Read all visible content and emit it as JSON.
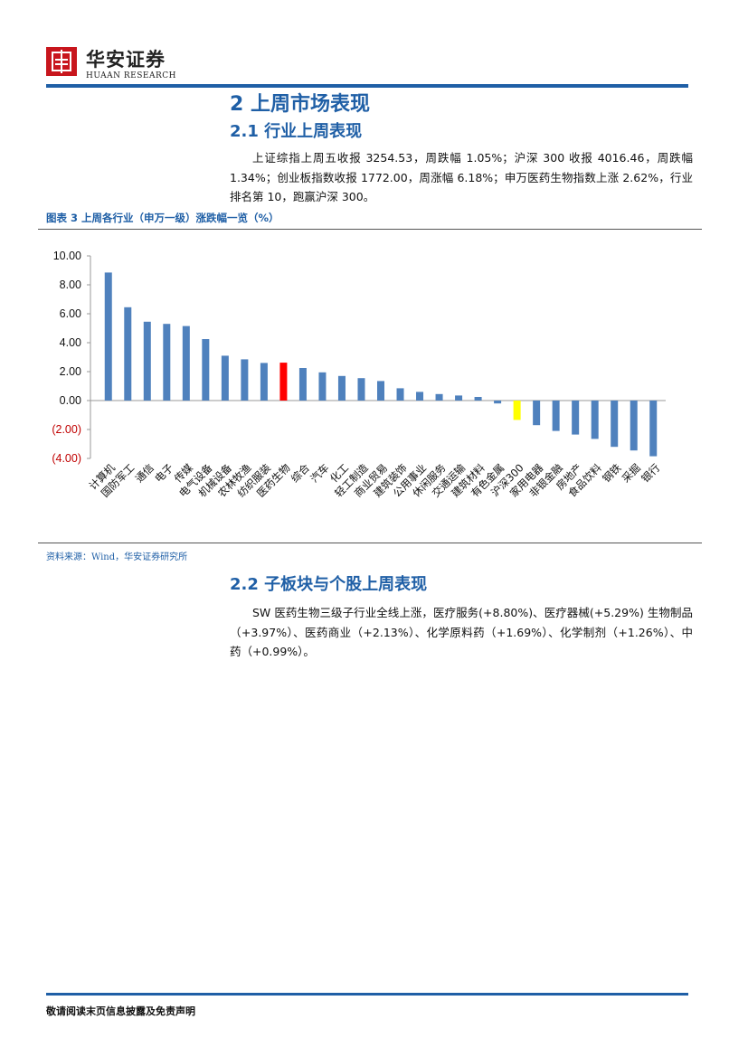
{
  "header": {
    "brand_cn": "华安证券",
    "brand_en": "HUAAN RESEARCH",
    "logo": "huaan-logo"
  },
  "section": {
    "heading": "2 上周市场表现",
    "sub1": "2.1 行业上周表现",
    "para1": "上证综指上周五收报 3254.53，周跌幅 1.05%；沪深 300 收报 4016.46，周跌幅 1.34%；创业板指数收报 1772.00，周涨幅 6.18%；申万医药生物指数上涨 2.62%，行业排名第 10，跑赢沪深 300。",
    "figure_title": "图表 3 上周各行业（申万一级）涨跌幅一览（%）",
    "source": "资料来源：Wind，华安证券研究所",
    "sub2": "2.2 子板块与个股上周表现",
    "para2": "SW 医药生物三级子行业全线上涨，医疗服务(+8.80%)、医疗器械(+5.29%) 生物制品（+3.97%）、医药商业（+2.13%）、化学原料药（+1.69%）、化学制剂（+1.26%）、中药（+0.99%）。"
  },
  "footer": {
    "disclaimer": "敬请阅读末页信息披露及免责声明"
  },
  "colors": {
    "brand_blue": "#1f5fa6",
    "bar_default": "#4f81bd",
    "bar_highlight": "#ff0000",
    "bar_index": "#ffff00",
    "negative_tick": "#c00000",
    "logo_red": "#c8161d"
  },
  "chart_data": {
    "type": "bar",
    "ylim": [
      -4,
      10
    ],
    "yticks": [
      "10.00",
      "8.00",
      "6.00",
      "4.00",
      "2.00",
      "0.00",
      "(2.00)",
      "(4.00)"
    ],
    "categories": [
      "计算机",
      "国防军工",
      "通信",
      "电子",
      "传媒",
      "电气设备",
      "机械设备",
      "农林牧渔",
      "纺织服装",
      "医药生物",
      "综合",
      "汽车",
      "化工",
      "轻工制造",
      "商业贸易",
      "建筑装饰",
      "公用事业",
      "休闲服务",
      "交通运输",
      "建筑材料",
      "有色金属",
      "沪深300",
      "家用电器",
      "非银金融",
      "房地产",
      "食品饮料",
      "钢铁",
      "采掘",
      "银行"
    ],
    "values": [
      8.85,
      6.45,
      5.45,
      5.3,
      5.15,
      4.25,
      3.1,
      2.85,
      2.6,
      2.62,
      2.25,
      1.95,
      1.7,
      1.55,
      1.35,
      0.85,
      0.6,
      0.45,
      0.35,
      0.25,
      -0.2,
      -1.34,
      -1.7,
      -2.1,
      -2.35,
      -2.65,
      -3.2,
      -3.45,
      -3.85
    ],
    "highlight": {
      "医药生物": "bar_highlight",
      "沪深300": "bar_index"
    }
  }
}
